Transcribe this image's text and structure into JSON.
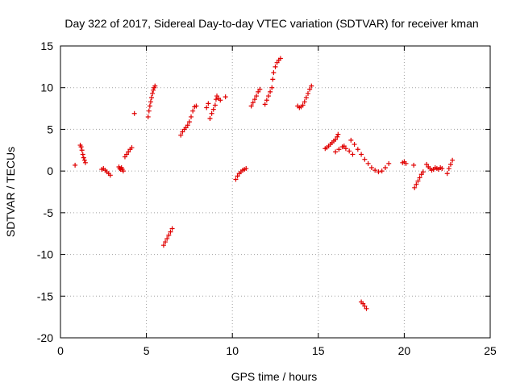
{
  "chart_data": {
    "type": "scatter",
    "title": "Day 322 of 2017, Sidereal Day-to-day VTEC variation (SDTVAR) for receiver kman",
    "xlabel": "GPS time / hours",
    "ylabel": "SDTVAR / TECUs",
    "xlim": [
      0,
      25
    ],
    "ylim": [
      -20,
      15
    ],
    "xticks": [
      0,
      5,
      10,
      15,
      20,
      25
    ],
    "yticks": [
      -20,
      -15,
      -10,
      -5,
      0,
      5,
      10,
      15
    ],
    "grid": true,
    "marker": "+",
    "color": "#e00000",
    "series": [
      {
        "name": "SDTVAR",
        "points": [
          [
            0.85,
            0.7
          ],
          [
            1.15,
            3.1
          ],
          [
            1.2,
            2.9
          ],
          [
            1.25,
            2.5
          ],
          [
            1.3,
            2.0
          ],
          [
            1.35,
            1.6
          ],
          [
            1.4,
            1.3
          ],
          [
            1.45,
            1.0
          ],
          [
            2.4,
            0.2
          ],
          [
            2.5,
            0.3
          ],
          [
            2.6,
            0.1
          ],
          [
            2.7,
            -0.1
          ],
          [
            2.8,
            -0.3
          ],
          [
            2.9,
            -0.5
          ],
          [
            3.4,
            0.5
          ],
          [
            3.45,
            0.3
          ],
          [
            3.5,
            0.2
          ],
          [
            3.55,
            0.4
          ],
          [
            3.6,
            0.2
          ],
          [
            3.65,
            0.0
          ],
          [
            3.75,
            1.7
          ],
          [
            3.85,
            2.0
          ],
          [
            3.95,
            2.3
          ],
          [
            4.05,
            2.6
          ],
          [
            4.15,
            2.8
          ],
          [
            4.3,
            6.9
          ],
          [
            5.1,
            6.5
          ],
          [
            5.15,
            7.2
          ],
          [
            5.2,
            7.8
          ],
          [
            5.25,
            8.3
          ],
          [
            5.3,
            8.8
          ],
          [
            5.35,
            9.3
          ],
          [
            5.4,
            9.7
          ],
          [
            5.45,
            10.0
          ],
          [
            5.5,
            10.2
          ],
          [
            6.0,
            -8.9
          ],
          [
            6.1,
            -8.5
          ],
          [
            6.2,
            -8.1
          ],
          [
            6.3,
            -7.7
          ],
          [
            6.4,
            -7.3
          ],
          [
            6.5,
            -6.9
          ],
          [
            7.0,
            4.3
          ],
          [
            7.1,
            4.7
          ],
          [
            7.2,
            5.0
          ],
          [
            7.3,
            5.2
          ],
          [
            7.4,
            5.5
          ],
          [
            7.5,
            5.9
          ],
          [
            7.6,
            6.5
          ],
          [
            7.7,
            7.2
          ],
          [
            7.8,
            7.7
          ],
          [
            7.9,
            7.8
          ],
          [
            8.5,
            7.6
          ],
          [
            8.6,
            8.1
          ],
          [
            8.7,
            6.3
          ],
          [
            8.8,
            6.9
          ],
          [
            8.9,
            7.4
          ],
          [
            9.0,
            7.9
          ],
          [
            9.05,
            8.6
          ],
          [
            9.1,
            9.0
          ],
          [
            9.2,
            8.7
          ],
          [
            9.3,
            8.5
          ],
          [
            9.6,
            8.9
          ],
          [
            10.2,
            -1.0
          ],
          [
            10.3,
            -0.6
          ],
          [
            10.4,
            -0.3
          ],
          [
            10.5,
            -0.1
          ],
          [
            10.6,
            0.1
          ],
          [
            10.7,
            0.2
          ],
          [
            10.8,
            0.3
          ],
          [
            11.1,
            7.8
          ],
          [
            11.2,
            8.2
          ],
          [
            11.3,
            8.6
          ],
          [
            11.4,
            9.0
          ],
          [
            11.5,
            9.5
          ],
          [
            11.6,
            9.8
          ],
          [
            11.9,
            8.0
          ],
          [
            12.0,
            8.5
          ],
          [
            12.1,
            9.0
          ],
          [
            12.2,
            9.5
          ],
          [
            12.3,
            10.0
          ],
          [
            12.35,
            11.0
          ],
          [
            12.4,
            11.8
          ],
          [
            12.5,
            12.5
          ],
          [
            12.6,
            13.0
          ],
          [
            12.7,
            13.3
          ],
          [
            12.8,
            13.5
          ],
          [
            13.8,
            7.8
          ],
          [
            13.9,
            7.6
          ],
          [
            14.0,
            7.7
          ],
          [
            14.1,
            7.9
          ],
          [
            14.2,
            8.3
          ],
          [
            14.3,
            8.8
          ],
          [
            14.4,
            9.3
          ],
          [
            14.5,
            9.8
          ],
          [
            14.6,
            10.2
          ],
          [
            15.4,
            2.7
          ],
          [
            15.5,
            2.8
          ],
          [
            15.6,
            3.0
          ],
          [
            15.7,
            3.2
          ],
          [
            15.8,
            3.4
          ],
          [
            15.9,
            3.6
          ],
          [
            16.0,
            3.8
          ],
          [
            16.1,
            4.1
          ],
          [
            16.15,
            4.4
          ],
          [
            16.0,
            2.3
          ],
          [
            16.2,
            2.6
          ],
          [
            16.4,
            2.9
          ],
          [
            16.5,
            3.0
          ],
          [
            16.6,
            2.7
          ],
          [
            16.8,
            2.4
          ],
          [
            17.0,
            2.0
          ],
          [
            16.9,
            3.7
          ],
          [
            17.1,
            3.2
          ],
          [
            17.3,
            2.6
          ],
          [
            17.5,
            2.0
          ],
          [
            17.7,
            1.4
          ],
          [
            17.9,
            0.9
          ],
          [
            18.1,
            0.4
          ],
          [
            18.3,
            0.1
          ],
          [
            18.5,
            -0.1
          ],
          [
            18.7,
            0.0
          ],
          [
            18.9,
            0.4
          ],
          [
            19.1,
            0.9
          ],
          [
            17.5,
            -15.7
          ],
          [
            17.6,
            -15.9
          ],
          [
            17.7,
            -16.2
          ],
          [
            17.8,
            -16.5
          ],
          [
            19.9,
            1.0
          ],
          [
            20.0,
            1.1
          ],
          [
            20.1,
            0.9
          ],
          [
            20.55,
            0.7
          ],
          [
            20.6,
            -2.0
          ],
          [
            20.7,
            -1.6
          ],
          [
            20.8,
            -1.2
          ],
          [
            20.9,
            -0.8
          ],
          [
            21.0,
            -0.4
          ],
          [
            21.1,
            -0.1
          ],
          [
            21.3,
            0.8
          ],
          [
            21.4,
            0.5
          ],
          [
            21.5,
            0.3
          ],
          [
            21.6,
            0.1
          ],
          [
            21.7,
            0.2
          ],
          [
            21.8,
            0.4
          ],
          [
            21.9,
            0.3
          ],
          [
            22.0,
            0.2
          ],
          [
            22.1,
            0.4
          ],
          [
            22.2,
            0.3
          ],
          [
            22.5,
            -0.3
          ],
          [
            22.6,
            0.3
          ],
          [
            22.7,
            0.8
          ],
          [
            22.8,
            1.3
          ]
        ]
      }
    ]
  }
}
